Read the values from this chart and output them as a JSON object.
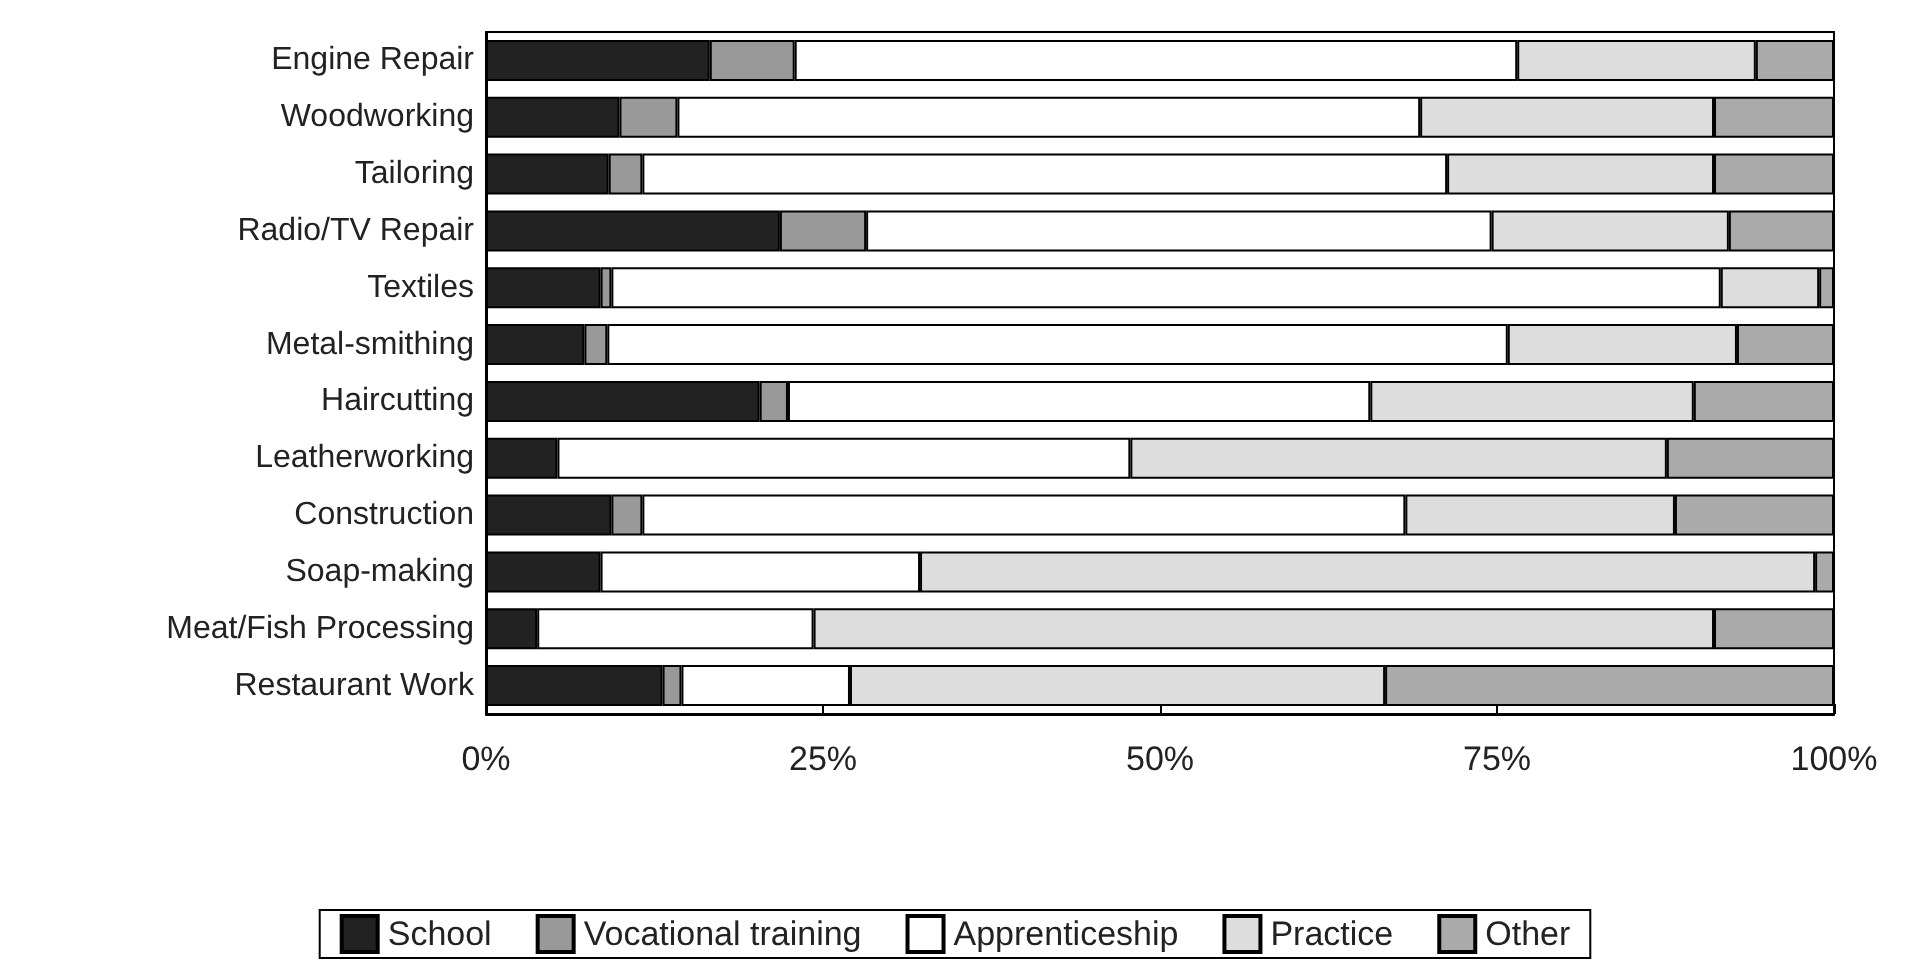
{
  "chart_data": {
    "type": "bar",
    "orientation": "horizontal",
    "stacked": true,
    "categories": [
      "Engine Repair",
      "Woodworking",
      "Tailoring",
      "Radio/TV Repair",
      "Textiles",
      "Metal-smithing",
      "Haircutting",
      "Leatherworking",
      "Construction",
      "Soap-making",
      "Meat/Fish Processing",
      "Restaurant Work"
    ],
    "series": [
      {
        "name": "School",
        "color": "#222222",
        "values": [
          16.6,
          9.9,
          9.1,
          21.8,
          8.5,
          7.3,
          20.3,
          5.3,
          9.3,
          8.5,
          3.8,
          13.1
        ]
      },
      {
        "name": "Vocational training",
        "color": "#999999",
        "values": [
          6.3,
          4.3,
          2.5,
          6.4,
          0.8,
          1.7,
          2.1,
          0,
          2.3,
          0,
          0,
          1.4
        ]
      },
      {
        "name": "Apprenticeship",
        "color": "#ffffff",
        "values": [
          53.6,
          55.1,
          59.7,
          46.4,
          82.3,
          66.8,
          43.2,
          42.5,
          56.6,
          23.7,
          20.5,
          12.5
        ]
      },
      {
        "name": "Practice",
        "color": "#dddddd",
        "values": [
          17.7,
          21.8,
          19.8,
          17.6,
          7.3,
          17.0,
          24.0,
          39.8,
          20.0,
          66.4,
          66.8,
          39.7
        ]
      },
      {
        "name": "Other",
        "color": "#aaaaaa",
        "values": [
          5.8,
          8.9,
          8.9,
          7.8,
          1.1,
          7.2,
          10.4,
          12.4,
          11.8,
          1.4,
          8.9,
          33.3
        ]
      }
    ],
    "xlim": [
      0,
      100
    ],
    "xticks": [
      {
        "value": 0,
        "label": "0%"
      },
      {
        "value": 25,
        "label": "25%"
      },
      {
        "value": 50,
        "label": "50%"
      },
      {
        "value": 75,
        "label": "75%"
      },
      {
        "value": 100,
        "label": "100%"
      }
    ],
    "grid": false,
    "legend": "bottom"
  }
}
